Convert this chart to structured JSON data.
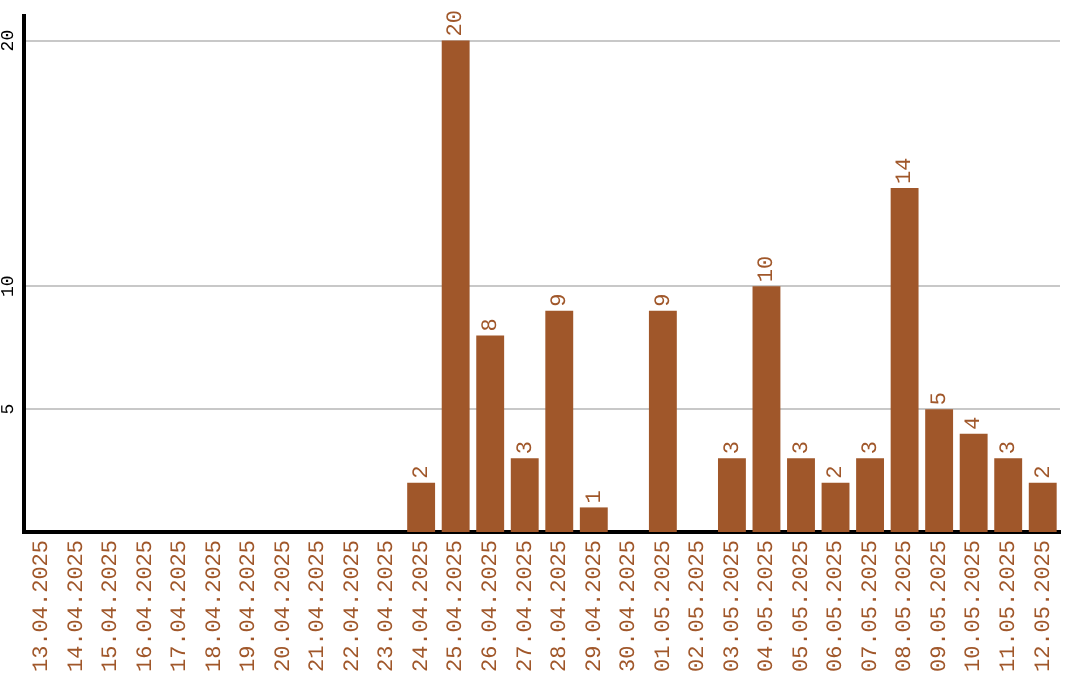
{
  "chart_data": {
    "type": "bar",
    "categories": [
      "13.04.2025",
      "14.04.2025",
      "15.04.2025",
      "16.04.2025",
      "17.04.2025",
      "18.04.2025",
      "19.04.2025",
      "20.04.2025",
      "21.04.2025",
      "22.04.2025",
      "23.04.2025",
      "24.04.2025",
      "25.04.2025",
      "26.04.2025",
      "27.04.2025",
      "28.04.2025",
      "29.04.2025",
      "30.04.2025",
      "01.05.2025",
      "02.05.2025",
      "03.05.2025",
      "04.05.2025",
      "05.05.2025",
      "06.05.2025",
      "07.05.2025",
      "08.05.2025",
      "09.05.2025",
      "10.05.2025",
      "11.05.2025",
      "12.05.2025"
    ],
    "values": [
      0,
      0,
      0,
      0,
      0,
      0,
      0,
      0,
      0,
      0,
      0,
      2,
      20,
      8,
      3,
      9,
      1,
      0,
      9,
      0,
      3,
      10,
      3,
      2,
      3,
      14,
      5,
      4,
      3,
      2
    ],
    "value_labels": [
      null,
      null,
      null,
      null,
      null,
      null,
      null,
      null,
      null,
      null,
      null,
      "2",
      "20",
      "8",
      "3",
      "9",
      "1",
      null,
      "9",
      null,
      "3",
      "10",
      "3",
      "2",
      "3",
      "14",
      "5",
      "4",
      "3",
      "2"
    ],
    "color": "#a0572a",
    "ylim": [
      0,
      21
    ],
    "yticks": [
      5,
      10,
      20
    ],
    "grid": "y",
    "legend": false
  }
}
